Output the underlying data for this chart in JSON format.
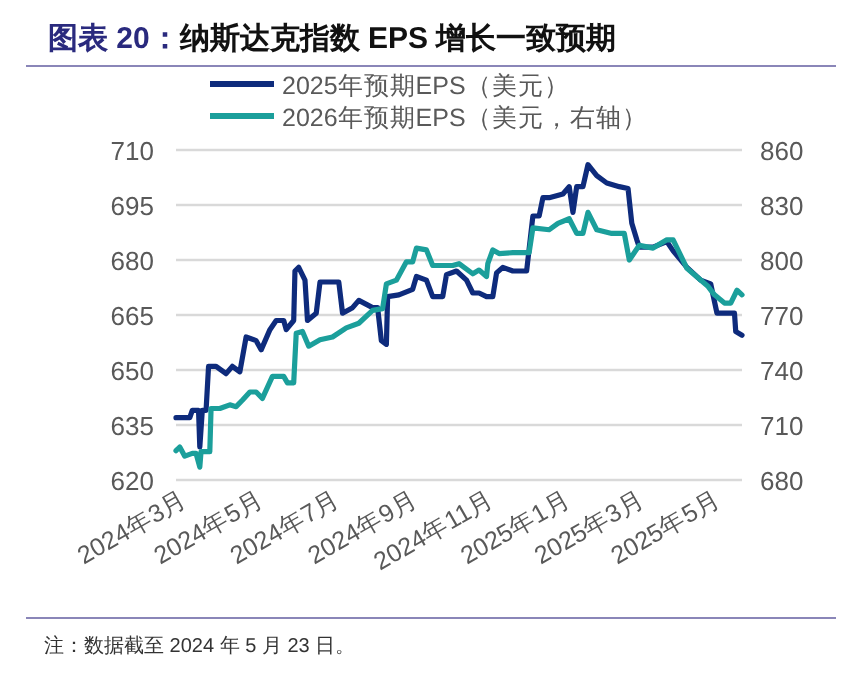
{
  "chart_data": {
    "type": "line",
    "title": "图表 20：纳斯达克指数 EPS 增长一致预期",
    "xlim": [
      "2024-02-26",
      "2025-05-23"
    ],
    "xticks": [
      {
        "value": "2024-03-01",
        "label": "2024年3月"
      },
      {
        "value": "2024-05-01",
        "label": "2024年5月"
      },
      {
        "value": "2024-07-01",
        "label": "2024年7月"
      },
      {
        "value": "2024-09-01",
        "label": "2024年9月"
      },
      {
        "value": "2024-11-01",
        "label": "2024年11月"
      },
      {
        "value": "2025-01-01",
        "label": "2025年1月"
      },
      {
        "value": "2025-03-01",
        "label": "2025年3月"
      },
      {
        "value": "2025-05-01",
        "label": "2025年5月"
      }
    ],
    "ylim": [
      620,
      710
    ],
    "yticks": [
      620,
      635,
      650,
      665,
      680,
      695,
      710
    ],
    "y2lim": [
      680,
      860
    ],
    "y2ticks": [
      680,
      710,
      740,
      770,
      800,
      830,
      860
    ],
    "grid": "y",
    "legend": "top",
    "marker": "none",
    "line_style": "solid",
    "annotations": [
      "注：数据截至 2024 年 5 月 23 日。"
    ],
    "series": [
      {
        "name": "2025年预期EPS（美元）",
        "color": "#0e2b7c",
        "x": [
          "2024-02-26",
          "2024-03-08",
          "2024-03-10",
          "2024-03-15",
          "2024-03-16",
          "2024-03-18",
          "2024-03-21",
          "2024-03-23",
          "2024-03-29",
          "2024-04-06",
          "2024-04-11",
          "2024-04-17",
          "2024-04-22",
          "2024-04-30",
          "2024-05-04",
          "2024-05-11",
          "2024-05-16",
          "2024-05-22",
          "2024-05-24",
          "2024-05-30",
          "2024-05-31",
          "2024-06-03",
          "2024-06-08",
          "2024-06-10",
          "2024-06-17",
          "2024-06-20",
          "2024-07-05",
          "2024-07-08",
          "2024-07-16",
          "2024-07-21",
          "2024-08-01",
          "2024-08-05",
          "2024-08-08",
          "2024-08-12",
          "2024-08-13",
          "2024-08-22",
          "2024-09-02",
          "2024-09-05",
          "2024-09-13",
          "2024-09-18",
          "2024-09-26",
          "2024-09-29",
          "2024-10-07",
          "2024-10-15",
          "2024-10-20",
          "2024-10-25",
          "2024-10-31",
          "2024-11-05",
          "2024-11-08",
          "2024-11-13",
          "2024-11-21",
          "2024-12-02",
          "2024-12-04",
          "2024-12-07",
          "2024-12-12",
          "2024-12-15",
          "2024-12-20",
          "2024-12-31",
          "2025-01-05",
          "2025-01-08",
          "2025-01-11",
          "2025-01-16",
          "2025-01-20",
          "2025-01-27",
          "2025-02-04",
          "2025-02-14",
          "2025-02-21",
          "2025-02-24",
          "2025-02-28",
          "2025-03-02",
          "2025-03-13",
          "2025-03-24",
          "2025-03-29",
          "2025-04-09",
          "2025-04-20",
          "2025-04-28",
          "2025-05-03",
          "2025-05-11",
          "2025-05-17",
          "2025-05-18",
          "2025-05-23"
        ],
        "values": [
          637,
          637,
          639,
          639,
          629,
          639,
          639,
          651,
          651,
          649,
          651,
          649.5,
          659,
          658,
          655.5,
          661,
          663.5,
          663.5,
          661,
          663.5,
          677,
          678,
          674.5,
          663.5,
          665.5,
          674,
          674,
          665.5,
          667,
          669,
          667,
          667,
          658,
          657,
          670,
          670.5,
          672,
          675.5,
          674.5,
          670,
          670,
          676,
          677,
          674.5,
          671,
          671,
          670,
          670,
          676.5,
          678,
          677,
          677,
          683,
          692,
          692,
          697,
          697,
          698,
          700,
          693,
          700,
          700,
          706,
          703,
          701,
          700,
          699.5,
          690,
          685.5,
          683.5,
          683.5,
          685,
          682.5,
          678,
          674.5,
          673.5,
          665.5,
          665.5,
          665.5,
          660.5,
          659.5
        ]
      },
      {
        "name": "2026年预期EPS（美元，右轴）",
        "color": "#1b9f9b",
        "axis": "y2",
        "x": [
          "2024-02-26",
          "2024-02-29",
          "2024-03-04",
          "2024-03-10",
          "2024-03-13",
          "2024-03-16",
          "2024-03-17",
          "2024-03-24",
          "2024-03-25",
          "2024-04-01",
          "2024-04-09",
          "2024-04-14",
          "2024-04-19",
          "2024-04-25",
          "2024-04-30",
          "2024-05-05",
          "2024-05-13",
          "2024-05-22",
          "2024-05-25",
          "2024-05-30",
          "2024-06-01",
          "2024-06-06",
          "2024-06-11",
          "2024-06-20",
          "2024-06-30",
          "2024-07-11",
          "2024-07-21",
          "2024-08-01",
          "2024-08-09",
          "2024-08-12",
          "2024-08-20",
          "2024-08-28",
          "2024-09-02",
          "2024-09-05",
          "2024-09-13",
          "2024-09-18",
          "2024-10-04",
          "2024-10-09",
          "2024-10-20",
          "2024-10-25",
          "2024-10-31",
          "2024-11-01",
          "2024-11-05",
          "2024-11-10",
          "2024-11-21",
          "2024-12-04",
          "2024-12-07",
          "2024-12-20",
          "2024-12-27",
          "2025-01-05",
          "2025-01-11",
          "2025-01-16",
          "2025-01-20",
          "2025-01-27",
          "2025-02-08",
          "2025-02-18",
          "2025-02-22",
          "2025-03-02",
          "2025-03-13",
          "2025-03-24",
          "2025-03-29",
          "2025-04-09",
          "2025-04-26",
          "2025-05-01",
          "2025-05-09",
          "2025-05-14",
          "2025-05-19",
          "2025-05-23"
        ],
        "values": [
          696,
          698,
          693,
          694.5,
          694.5,
          687,
          695.5,
          695.5,
          719,
          719,
          721,
          720,
          723.5,
          728,
          728,
          724.5,
          736.5,
          736.5,
          733,
          733,
          760,
          761,
          753,
          756.5,
          758,
          763,
          765.5,
          772.5,
          773.5,
          787,
          789,
          799,
          799,
          806.5,
          805.5,
          797,
          797,
          798,
          792.5,
          794.5,
          791,
          798,
          805.5,
          803.5,
          804,
          804,
          817.5,
          816.5,
          820,
          822.5,
          814.5,
          814.5,
          826,
          816.5,
          814.5,
          814.5,
          800,
          808,
          806.5,
          811,
          811,
          795.5,
          785.5,
          781,
          776.5,
          776.5,
          783.5,
          781
        ]
      }
    ]
  }
}
